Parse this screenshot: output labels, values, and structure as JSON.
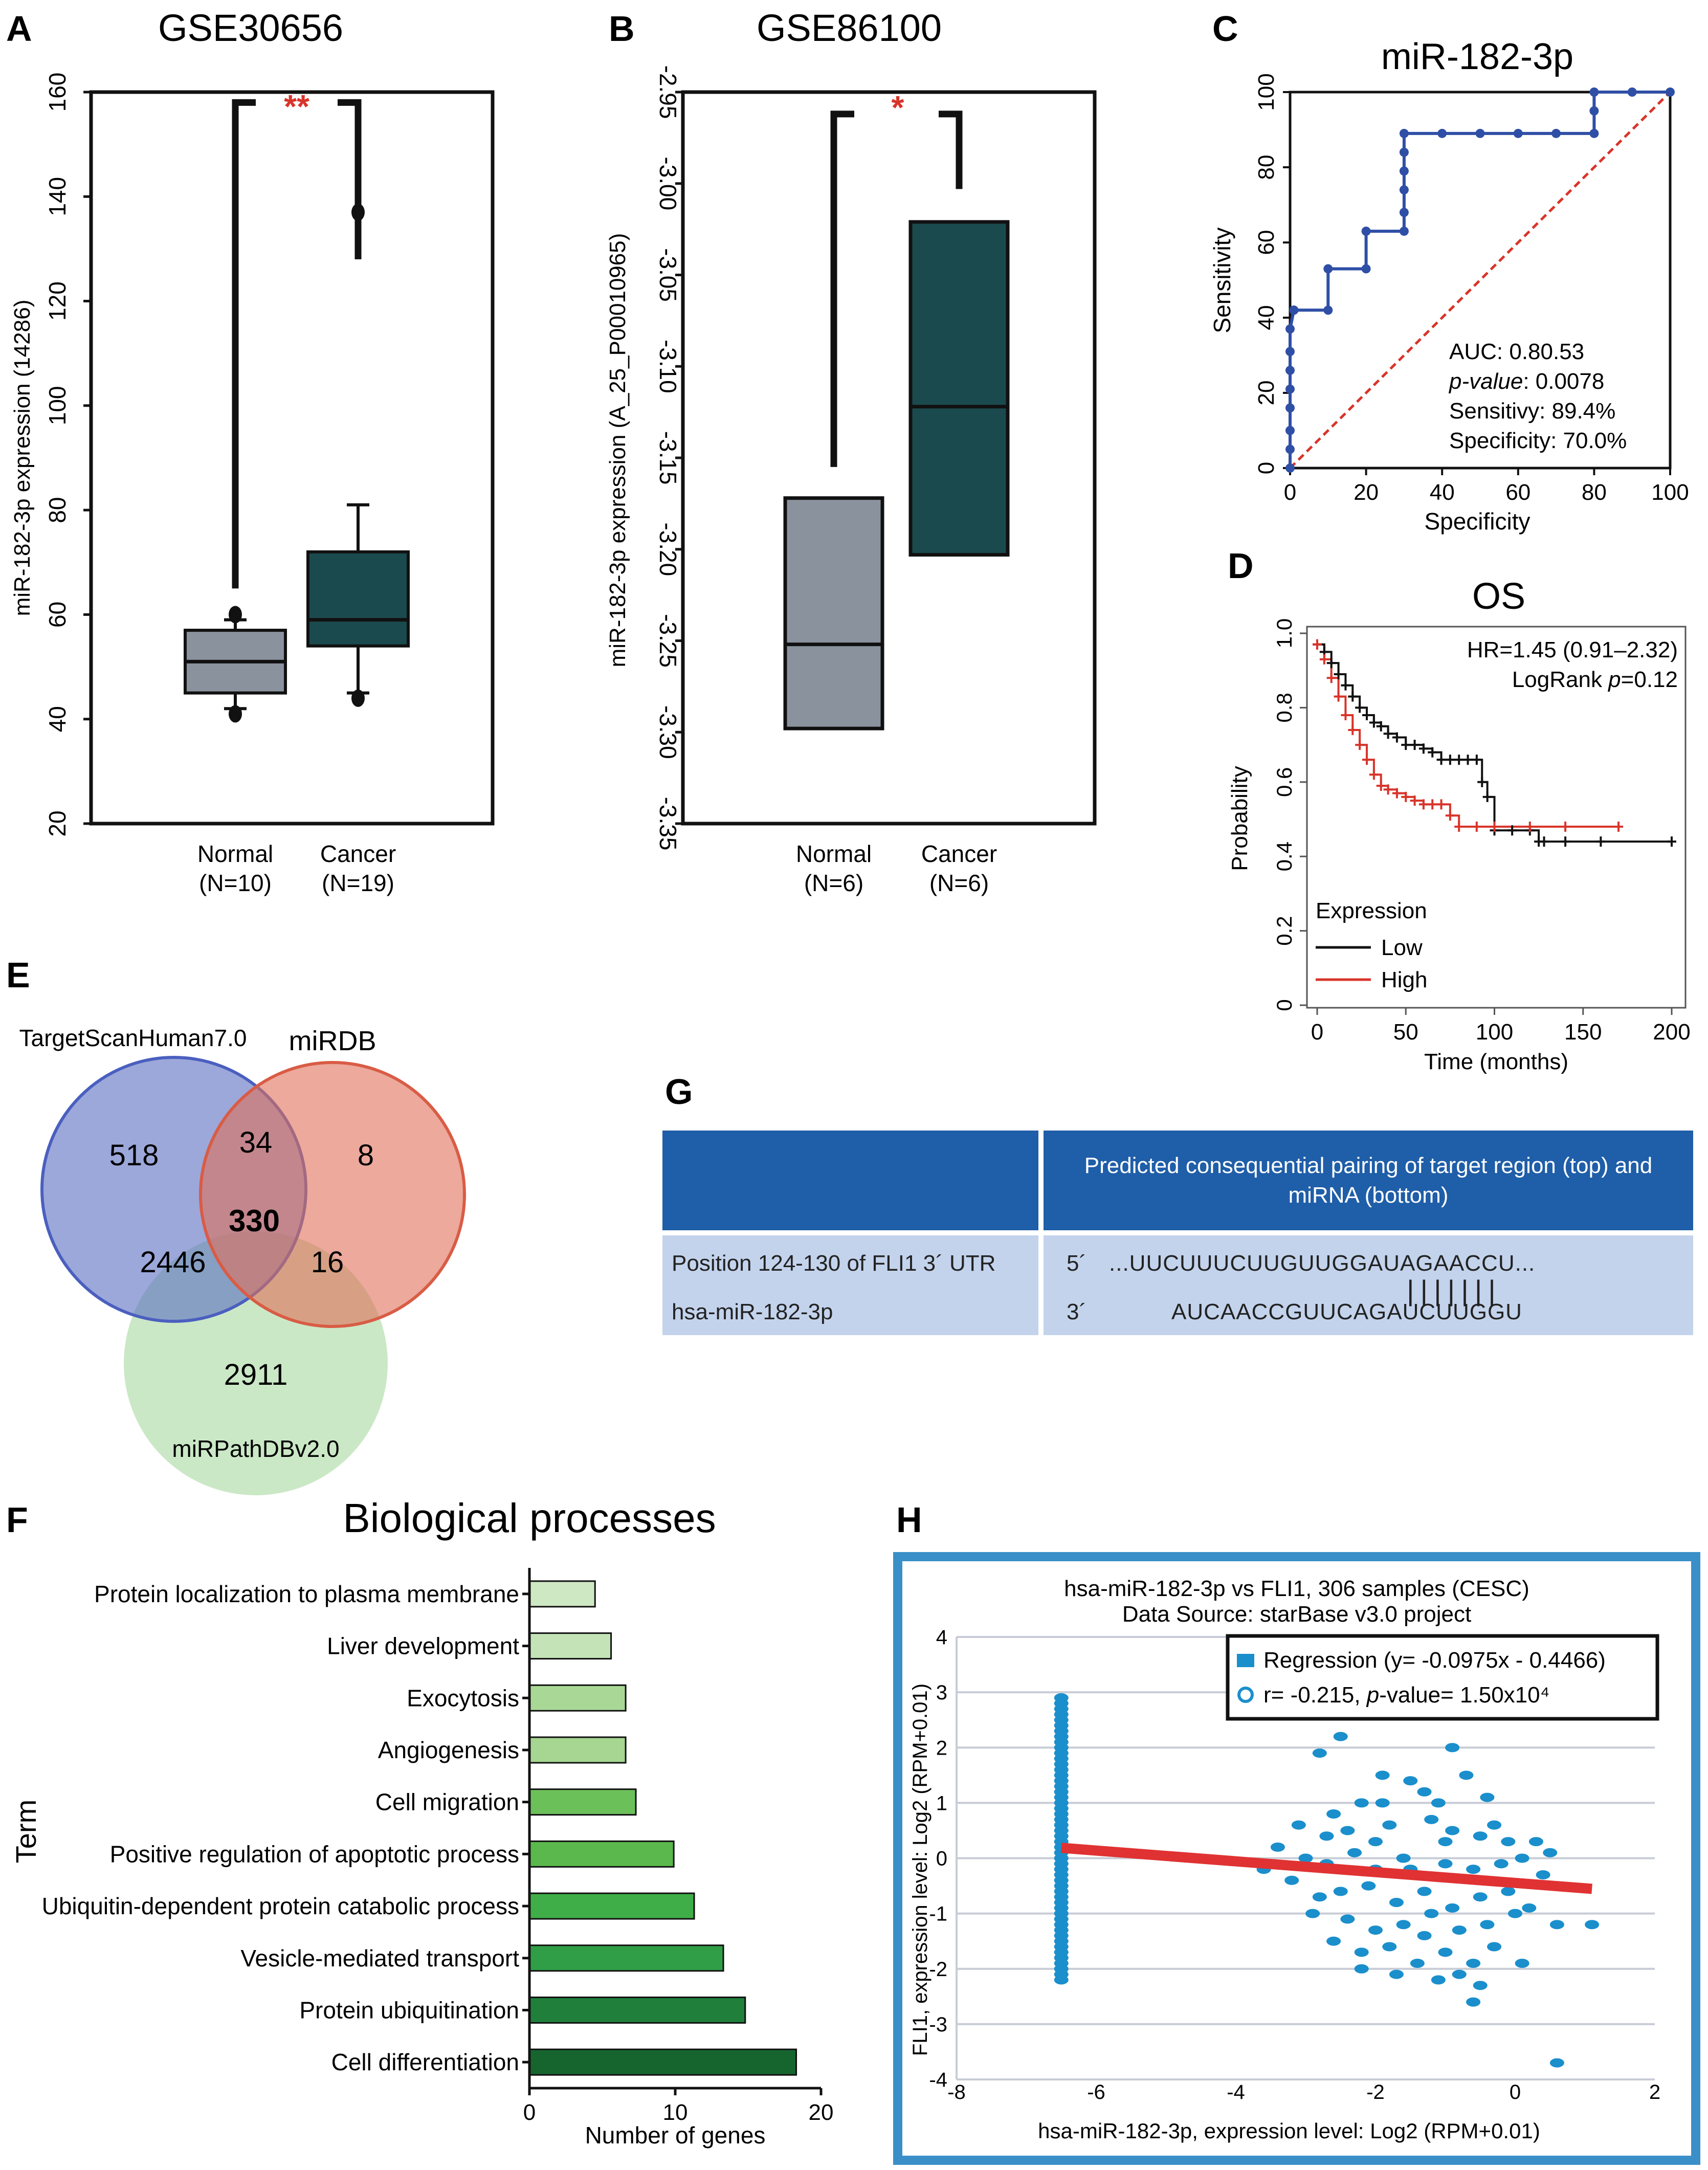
{
  "panels": {
    "A": {
      "letter": "A",
      "title": "GSE30656",
      "significance": "**"
    },
    "B": {
      "letter": "B",
      "title": "GSE86100",
      "significance": "*"
    },
    "C": {
      "letter": "C",
      "title": "miR-182-3p"
    },
    "D": {
      "letter": "D",
      "title": "OS"
    },
    "E": {
      "letter": "E"
    },
    "F": {
      "letter": "F"
    },
    "G": {
      "letter": "G"
    },
    "H": {
      "letter": "H"
    }
  },
  "chart_data": [
    {
      "id": "A",
      "type": "box",
      "title": "GSE30656",
      "ylabel": "miR-182-3p expression (14286)",
      "ylim": [
        20,
        160
      ],
      "yticks": [
        "20",
        "40",
        "60",
        "80",
        "100",
        "120",
        "140",
        "160"
      ],
      "groups": [
        {
          "label": "Normal",
          "n": "(N=10)",
          "whisker_low": 42,
          "q1": 45,
          "median": 51,
          "q3": 57,
          "whisker_high": 59,
          "outliers": [
            41,
            60
          ],
          "color": "#8a929e"
        },
        {
          "label": "Cancer",
          "n": "(N=19)",
          "whisker_low": 45,
          "q1": 54,
          "median": 59,
          "q3": 72,
          "whisker_high": 81,
          "outliers": [
            44,
            137
          ],
          "color": "#1b4a4e"
        }
      ],
      "significance": "**"
    },
    {
      "id": "B",
      "type": "box",
      "title": "GSE86100",
      "ylabel": "miR-182-3p expression (A_25_P00010965)",
      "ylim": [
        -3.35,
        -2.95
      ],
      "yticks": [
        "-3.35",
        "-3.30",
        "-3.25",
        "-3.20",
        "-3.15",
        "-3.10",
        "-3.05",
        "-3.00",
        "-2.95"
      ],
      "groups": [
        {
          "label": "Normal",
          "n": "(N=6)",
          "q1": -3.298,
          "median": -3.252,
          "q3": -3.172,
          "color": "#8a929e"
        },
        {
          "label": "Cancer",
          "n": "(N=6)",
          "q1": -3.203,
          "median": -3.122,
          "q3": -3.021,
          "color": "#1b4a4e"
        }
      ],
      "significance": "*"
    },
    {
      "id": "C",
      "type": "line",
      "title": "miR-182-3p",
      "xlabel": "Specificity",
      "ylabel": "Sensitivity",
      "xlim": [
        0,
        100
      ],
      "ylim": [
        0,
        100
      ],
      "xticks": [
        "0",
        "20",
        "40",
        "60",
        "80",
        "100"
      ],
      "yticks": [
        "0",
        "20",
        "40",
        "60",
        "80",
        "100"
      ],
      "roc_x": [
        0,
        0,
        0,
        0,
        0,
        0,
        0,
        0,
        1,
        1,
        10,
        10,
        20,
        20,
        30,
        30,
        30,
        30,
        30,
        30,
        40,
        50,
        60,
        70,
        80,
        80,
        80,
        90,
        100
      ],
      "roc_y": [
        0,
        5,
        10,
        16,
        21,
        26,
        31,
        37,
        42,
        42,
        42,
        53,
        53,
        63,
        63,
        68,
        74,
        79,
        84,
        89,
        89,
        89,
        89,
        89,
        89,
        95,
        100,
        100,
        100
      ],
      "stats": {
        "auc": "AUC: 0.80.53",
        "pvalue_label": "p-value",
        "pvalue": ": 0.0078",
        "sensitivity": "Sensitivy: 89.4%",
        "specificity": "Specificity: 70.0%"
      }
    },
    {
      "id": "D",
      "type": "line",
      "title": "OS",
      "xlabel": "Time (months)",
      "ylabel": "Probability",
      "xlim": [
        0,
        200
      ],
      "ylim": [
        0,
        1.0
      ],
      "xticks": [
        "0",
        "50",
        "100",
        "150",
        "200"
      ],
      "yticks": [
        "0",
        "0.2",
        "0.4",
        "0.6",
        "0.8",
        "1.0"
      ],
      "hr": "HR=1.45 (0.91–2.32)",
      "logrank_prefix": "LogRank ",
      "logrank_p": "p",
      "logrank_value": "=0.12",
      "legend_title": "Expression",
      "series": [
        {
          "name": "Low",
          "color": "#111111",
          "x": [
            0,
            4,
            8,
            12,
            16,
            20,
            24,
            28,
            32,
            36,
            40,
            45,
            50,
            55,
            60,
            65,
            70,
            75,
            80,
            85,
            90,
            93,
            96,
            100,
            110,
            120,
            125,
            128,
            140,
            160,
            200
          ],
          "y": [
            0.97,
            0.95,
            0.92,
            0.89,
            0.86,
            0.83,
            0.8,
            0.78,
            0.76,
            0.75,
            0.73,
            0.72,
            0.7,
            0.7,
            0.69,
            0.68,
            0.66,
            0.66,
            0.66,
            0.66,
            0.66,
            0.6,
            0.56,
            0.47,
            0.47,
            0.47,
            0.44,
            0.44,
            0.44,
            0.44,
            0.44
          ]
        },
        {
          "name": "High",
          "color": "#d8342a",
          "x": [
            0,
            4,
            8,
            12,
            16,
            20,
            24,
            28,
            32,
            36,
            40,
            45,
            50,
            55,
            60,
            65,
            70,
            75,
            80,
            90,
            100,
            120,
            140,
            170
          ],
          "y": [
            0.97,
            0.93,
            0.88,
            0.83,
            0.78,
            0.74,
            0.7,
            0.66,
            0.62,
            0.59,
            0.58,
            0.57,
            0.56,
            0.55,
            0.54,
            0.54,
            0.54,
            0.51,
            0.48,
            0.48,
            0.48,
            0.48,
            0.48,
            0.48
          ]
        }
      ]
    },
    {
      "id": "E",
      "type": "venn",
      "sets": [
        {
          "name": "TargetScanHuman7.0",
          "color": "#5a6ec2"
        },
        {
          "name": "miRDB",
          "color": "#e0705a"
        },
        {
          "name": "miRPathDBv2.0",
          "color": "#a8d8a0"
        }
      ],
      "regions": {
        "ts_only": "518",
        "ts_mirdb": "34",
        "mirdb_only": "8",
        "all": "330",
        "ts_path": "2446",
        "mirdb_path": "16",
        "path_only": "2911"
      }
    },
    {
      "id": "F",
      "type": "bar",
      "title": "Biological processes",
      "xlabel": "Number of genes",
      "ylabel": "Term",
      "xlim": [
        0,
        20
      ],
      "xticks": [
        "0",
        "10",
        "20"
      ],
      "categories": [
        "Protein localization to plasma membrane",
        "Liver development",
        "Exocytosis",
        "Angiogenesis",
        "Cell migration",
        "Positive regulation of apoptotic process",
        "Ubiquitin-dependent protein catabolic process",
        "Vesicle-mediated transport",
        "Protein ubiquitination",
        "Cell differentiation"
      ],
      "values": [
        4.5,
        5.6,
        6.6,
        6.6,
        7.3,
        9.9,
        11.3,
        13.3,
        14.8,
        18.3
      ],
      "colors": [
        "#cfe8c4",
        "#c4e3b6",
        "#a9d896",
        "#a6d691",
        "#6cc05a",
        "#5bb84c",
        "#3fae48",
        "#2f9e46",
        "#1f7f3b",
        "#16652f"
      ]
    },
    {
      "id": "H",
      "type": "scatter",
      "title": "hsa-miR-182-3p vs FLI1, 306 samples (CESC)",
      "subtitle": "Data Source: starBase v3.0 project",
      "xlabel": "hsa-miR-182-3p, expression level: Log2 (RPM+0.01)",
      "ylabel": "FLI1, expression level: Log2 (RPM+0.01)",
      "xlim": [
        -8,
        2
      ],
      "ylim": [
        -4,
        4
      ],
      "xticks": [
        "-8",
        "-6",
        "-4",
        "-2",
        "0",
        "2"
      ],
      "yticks": [
        "-4",
        "-3",
        "-2",
        "-1",
        "0",
        "1",
        "2",
        "3",
        "4"
      ],
      "regression_label": "Regression (y= -0.0975x - 0.4466)",
      "r_label": "r= -0.215, ",
      "p_label": "p",
      "p_value": "-value= 1.50x10⁴",
      "regression_slope": -0.0975,
      "regression_intercept": -0.4466,
      "regression_xrange": [
        -6.5,
        1.1
      ],
      "cluster_x": -6.5,
      "cluster_y": [
        2.9,
        2.8,
        2.7,
        2.6,
        2.5,
        2.4,
        2.3,
        2.2,
        2.1,
        2.0,
        1.9,
        1.8,
        1.7,
        1.6,
        1.5,
        1.4,
        1.3,
        1.2,
        1.1,
        1.0,
        0.9,
        0.8,
        0.7,
        0.6,
        0.5,
        0.4,
        0.3,
        0.2,
        0.1,
        0.0,
        -0.1,
        -0.2,
        -0.3,
        -0.4,
        -0.5,
        -0.6,
        -0.7,
        -0.8,
        -0.9,
        -1.0,
        -1.1,
        -1.2,
        -1.3,
        -1.4,
        -1.5,
        -1.6,
        -1.7,
        -1.8,
        -1.9,
        -2.0,
        -2.1,
        -2.2
      ],
      "points": [
        [
          -2.5,
          2.2
        ],
        [
          -0.9,
          2.0
        ],
        [
          -2.8,
          1.9
        ],
        [
          -1.9,
          1.5
        ],
        [
          -1.5,
          1.4
        ],
        [
          -1.3,
          1.2
        ],
        [
          -1.1,
          1.0
        ],
        [
          -0.7,
          1.5
        ],
        [
          -0.4,
          1.1
        ],
        [
          -2.2,
          1.0
        ],
        [
          -2.6,
          0.8
        ],
        [
          -3.1,
          0.6
        ],
        [
          -2.4,
          0.5
        ],
        [
          -1.8,
          0.6
        ],
        [
          -1.2,
          0.7
        ],
        [
          -0.9,
          0.5
        ],
        [
          -0.5,
          0.4
        ],
        [
          -0.1,
          0.3
        ],
        [
          0.3,
          0.3
        ],
        [
          -3.4,
          0.2
        ],
        [
          -3.0,
          0.0
        ],
        [
          -2.7,
          -0.1
        ],
        [
          -2.3,
          0.1
        ],
        [
          -2.0,
          -0.2
        ],
        [
          -1.6,
          0.0
        ],
        [
          -1.4,
          -0.3
        ],
        [
          -1.0,
          -0.1
        ],
        [
          -0.6,
          -0.2
        ],
        [
          -0.2,
          -0.1
        ],
        [
          0.1,
          0.0
        ],
        [
          0.4,
          -0.3
        ],
        [
          -3.2,
          -0.4
        ],
        [
          -2.8,
          -0.7
        ],
        [
          -2.5,
          -0.6
        ],
        [
          -2.1,
          -0.5
        ],
        [
          -1.7,
          -0.8
        ],
        [
          -1.3,
          -0.6
        ],
        [
          -0.9,
          -0.9
        ],
        [
          -0.5,
          -0.7
        ],
        [
          -0.1,
          -0.6
        ],
        [
          0.2,
          -0.9
        ],
        [
          -2.9,
          -1.0
        ],
        [
          -2.4,
          -1.1
        ],
        [
          -2.0,
          -1.3
        ],
        [
          -1.6,
          -1.2
        ],
        [
          -1.2,
          -1.0
        ],
        [
          -0.8,
          -1.3
        ],
        [
          -0.4,
          -1.2
        ],
        [
          0.0,
          -1.0
        ],
        [
          0.6,
          -1.2
        ],
        [
          1.1,
          -1.2
        ],
        [
          -2.6,
          -1.5
        ],
        [
          -2.2,
          -1.7
        ],
        [
          -1.8,
          -1.6
        ],
        [
          -1.4,
          -1.9
        ],
        [
          -1.0,
          -1.7
        ],
        [
          -0.6,
          -1.9
        ],
        [
          -0.3,
          -1.6
        ],
        [
          0.1,
          -1.9
        ],
        [
          -1.7,
          -2.1
        ],
        [
          -1.1,
          -2.2
        ],
        [
          -0.5,
          -2.3
        ],
        [
          -0.6,
          -2.6
        ],
        [
          0.6,
          -3.7
        ],
        [
          -1.5,
          -0.2
        ],
        [
          -2.7,
          0.4
        ],
        [
          -0.3,
          0.6
        ],
        [
          0.5,
          0.1
        ],
        [
          -3.6,
          -0.2
        ],
        [
          -1.9,
          1.0
        ],
        [
          -1.0,
          0.3
        ],
        [
          -2.2,
          -2.0
        ],
        [
          -0.8,
          -2.1
        ],
        [
          -1.3,
          -1.4
        ],
        [
          -2.0,
          0.3
        ]
      ]
    }
  ],
  "table": {
    "header_left": "",
    "header_right": "Predicted consequential pairing of target region (top) and miRNA (bottom)",
    "row_left_top": "Position 124-130 of FLI1 3´ UTR",
    "row_left_bottom": "hsa-miR-182-3p",
    "prime5": "5´",
    "target_seq": "...UUCUUUCUUGUUGGAUAGAACCU...",
    "pairing": "|||||||",
    "prime3": "3´",
    "mirna_seq": "AUCAACCGUUCAGAUCUUGGU"
  }
}
